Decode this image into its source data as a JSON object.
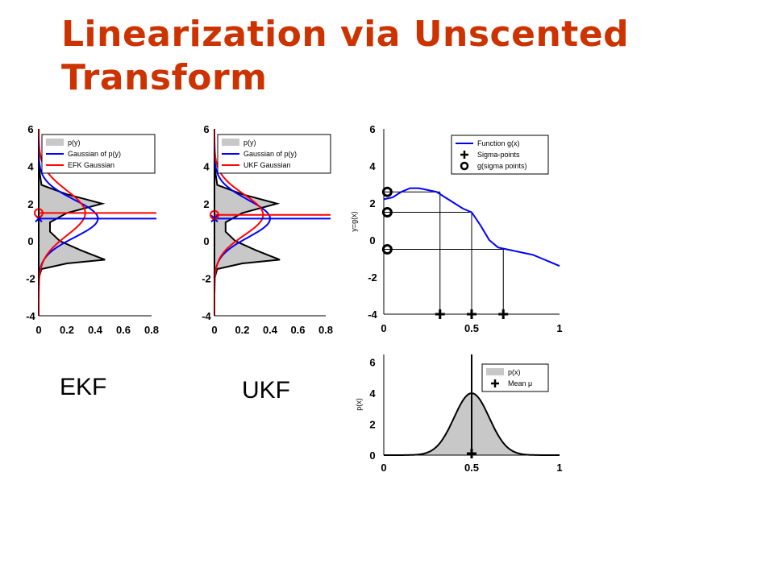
{
  "slide": {
    "title": "Linearization via Unscented Transform",
    "label_ekf": "EKF",
    "label_ukf": "UKF"
  },
  "colors": {
    "title": "#cc3300",
    "blue": "#0000ff",
    "red": "#ff0000",
    "fill": "#c8c8c8"
  },
  "chart_data": [
    {
      "id": "ekf",
      "type": "area",
      "orientation": "horizontal-density",
      "x_ticks": [
        "0",
        "0.2",
        "0.4",
        "0.6",
        "0.8"
      ],
      "y_ticks": [
        "6",
        "4",
        "2",
        "0",
        "-2",
        "-4"
      ],
      "xlim": [
        0,
        0.8
      ],
      "ylim": [
        -4,
        6
      ],
      "legend": [
        "p(y)",
        "Gaussian of p(y)",
        "EFK Gaussian"
      ],
      "series": [
        {
          "name": "p(y)",
          "y": [
            -4,
            -2,
            -1.5,
            -1.2,
            -1,
            -0.5,
            0,
            0.5,
            1,
            1.5,
            2,
            2.5,
            3,
            4,
            6
          ],
          "x": [
            0,
            0,
            0.02,
            0.2,
            0.47,
            0.3,
            0.15,
            0.08,
            0.08,
            0.2,
            0.45,
            0.2,
            0.02,
            0,
            0
          ]
        },
        {
          "name": "Gaussian of p(y)",
          "mean": 1.2,
          "peak": 0.42,
          "sigma": 1.0
        },
        {
          "name": "EFK Gaussian",
          "mean": 1.5,
          "peak": 0.33,
          "sigma": 1.2
        }
      ],
      "markers": [
        {
          "label": "mean of p(y)",
          "y": 1.2
        },
        {
          "label": "EKF mean",
          "y": 1.5
        }
      ]
    },
    {
      "id": "ukf",
      "type": "area",
      "orientation": "horizontal-density",
      "x_ticks": [
        "0",
        "0.2",
        "0.4",
        "0.6",
        "0.8"
      ],
      "y_ticks": [
        "6",
        "4",
        "2",
        "0",
        "-2",
        "-4"
      ],
      "xlim": [
        0,
        0.8
      ],
      "ylim": [
        -4,
        6
      ],
      "legend": [
        "p(y)",
        "Gaussian of p(y)",
        "UKF Gaussian"
      ],
      "series": [
        {
          "name": "p(y)",
          "y": [
            -4,
            -2,
            -1.5,
            -1.2,
            -1,
            -0.5,
            0,
            0.5,
            1,
            1.5,
            2,
            2.5,
            3,
            4,
            6
          ],
          "x": [
            0,
            0,
            0.02,
            0.2,
            0.47,
            0.3,
            0.15,
            0.08,
            0.08,
            0.2,
            0.45,
            0.2,
            0.02,
            0,
            0
          ]
        },
        {
          "name": "Gaussian of p(y)",
          "mean": 1.2,
          "peak": 0.4,
          "sigma": 1.0
        },
        {
          "name": "UKF Gaussian",
          "mean": 1.4,
          "peak": 0.35,
          "sigma": 1.1
        }
      ],
      "markers": [
        {
          "label": "mean of p(y)",
          "y": 1.2
        },
        {
          "label": "UKF mean",
          "y": 1.4
        }
      ]
    },
    {
      "id": "function",
      "type": "line",
      "ylabel": "y=g(x)",
      "x_ticks": [
        "0",
        "0.5",
        "1"
      ],
      "y_ticks": [
        "6",
        "4",
        "2",
        "0",
        "-2",
        "-4"
      ],
      "xlim": [
        0,
        1
      ],
      "ylim": [
        -4,
        6
      ],
      "legend": [
        "Function g(x)",
        "Sigma-points",
        "g(sigma points)"
      ],
      "series": [
        {
          "name": "Function g(x)",
          "x": [
            0,
            0.05,
            0.1,
            0.15,
            0.2,
            0.25,
            0.3,
            0.35,
            0.4,
            0.45,
            0.5,
            0.55,
            0.6,
            0.65,
            0.7,
            0.75,
            0.8,
            0.85,
            0.9,
            0.95,
            1.0
          ],
          "y": [
            2.2,
            2.3,
            2.6,
            2.8,
            2.8,
            2.7,
            2.6,
            2.3,
            2.0,
            1.7,
            1.5,
            0.8,
            0.0,
            -0.4,
            -0.5,
            -0.6,
            -0.7,
            -0.8,
            -1.0,
            -1.2,
            -1.4
          ]
        },
        {
          "name": "Sigma-points",
          "x": [
            0.32,
            0.5,
            0.68
          ],
          "y": [
            -4,
            -4,
            -4
          ]
        },
        {
          "name": "g(sigma points)",
          "x": [
            0.02,
            0.02,
            0.02
          ],
          "y": [
            2.6,
            1.5,
            -0.5
          ]
        }
      ]
    },
    {
      "id": "prior",
      "type": "area",
      "ylabel": "p(x)",
      "x_ticks": [
        "0",
        "0.5",
        "1"
      ],
      "y_ticks": [
        "6",
        "4",
        "2",
        "0"
      ],
      "xlim": [
        0,
        1
      ],
      "ylim": [
        0,
        6.5
      ],
      "legend": [
        "p(x)",
        "Mean μ"
      ],
      "series": [
        {
          "name": "p(x)",
          "mean": 0.5,
          "peak": 4.0,
          "sigma": 0.1
        },
        {
          "name": "Mean μ",
          "x": [
            0.5
          ],
          "y": [
            0
          ]
        }
      ]
    }
  ]
}
